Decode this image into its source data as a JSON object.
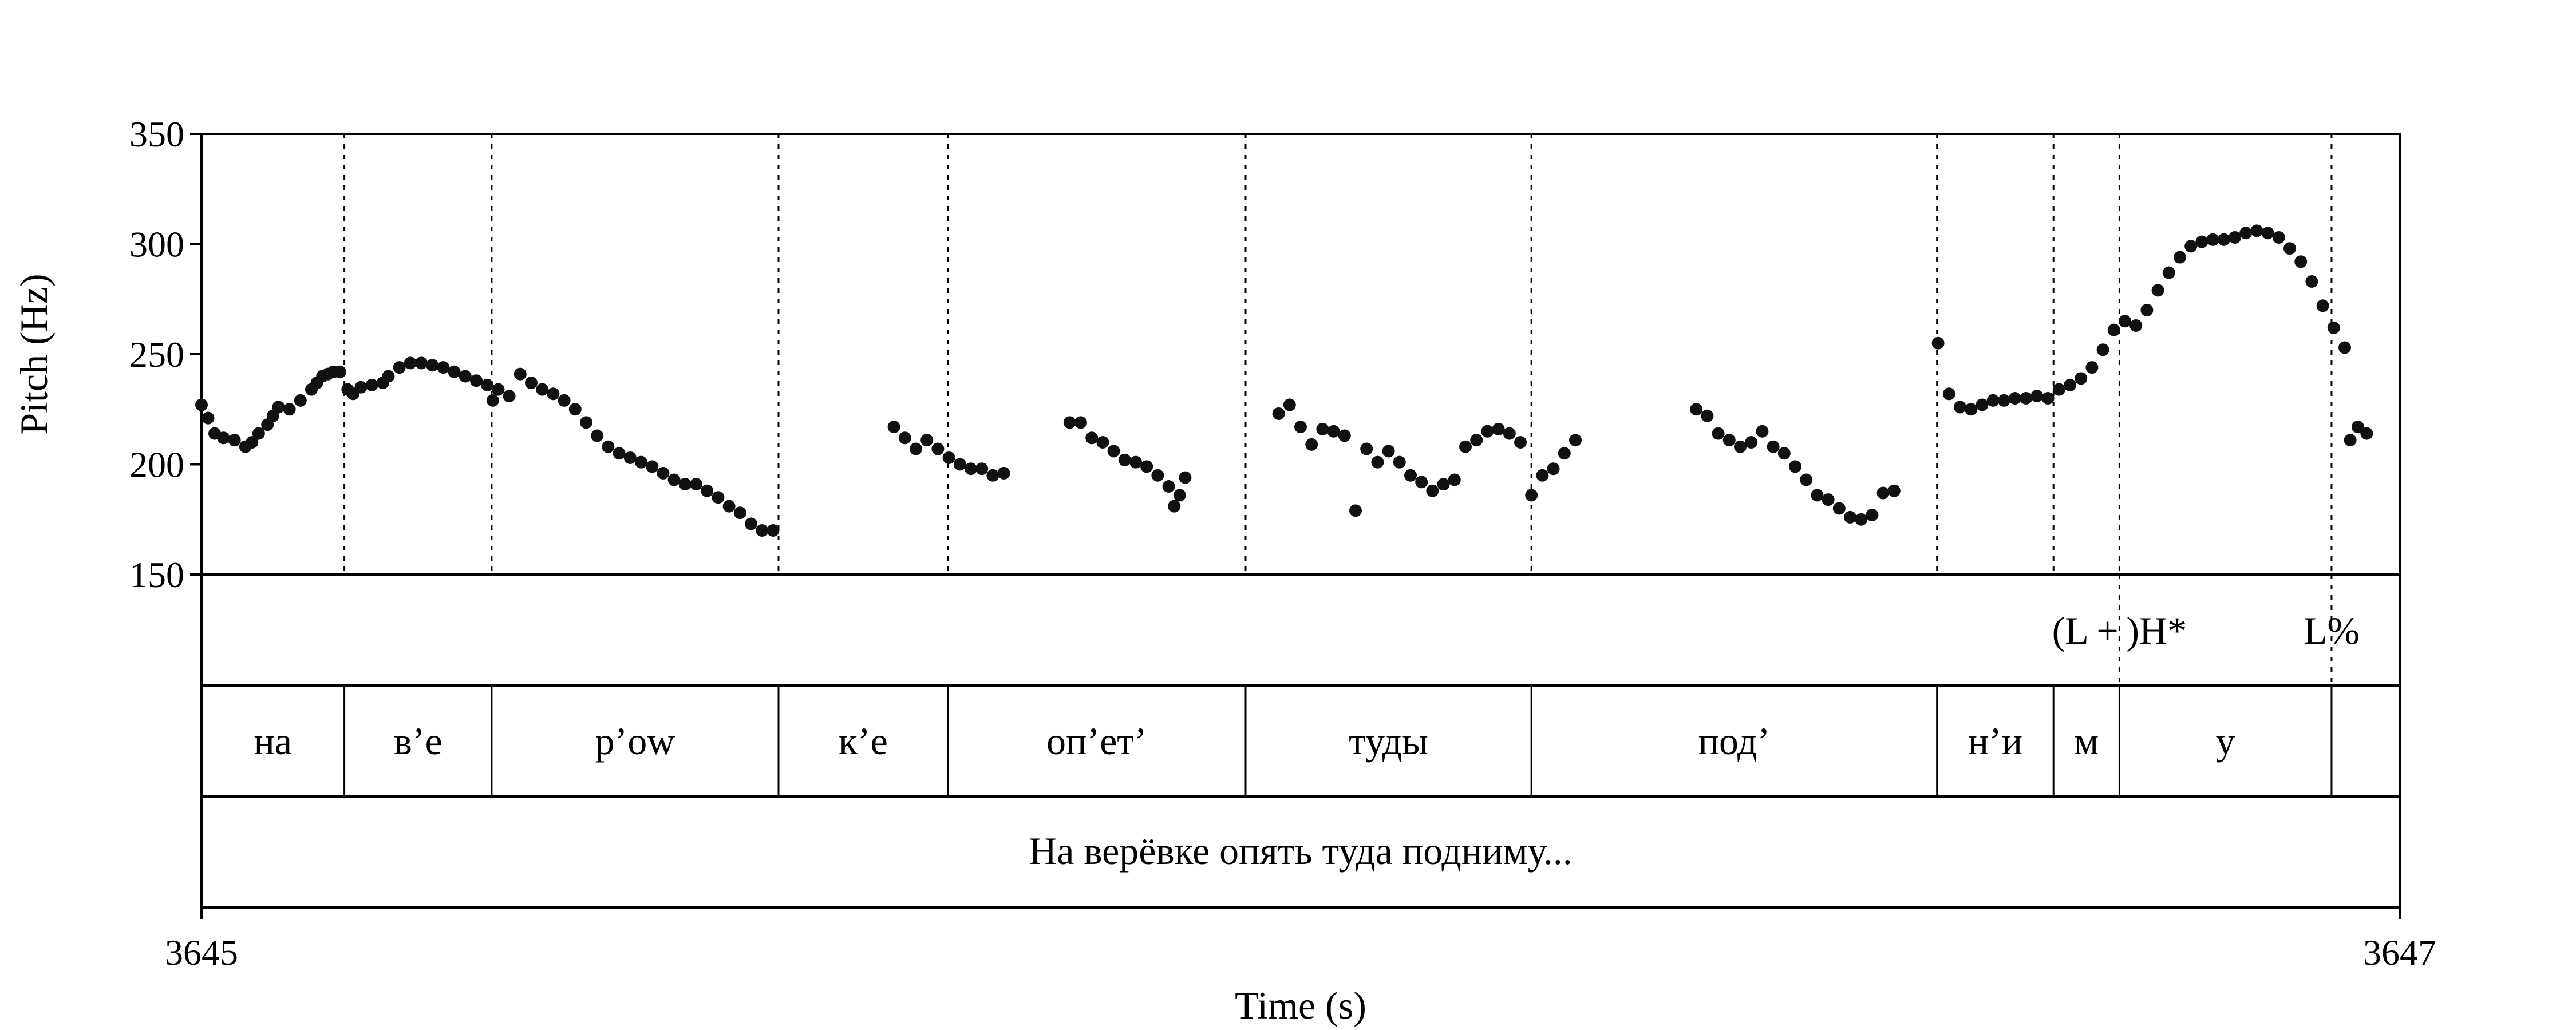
{
  "chart_data": {
    "type": "scatter",
    "title": "",
    "xlabel": "Time (s)",
    "ylabel": "Pitch (Hz)",
    "xlim": [
      3645,
      3647
    ],
    "ylim": [
      150,
      350
    ],
    "x_ticks": [
      "3645",
      "3647"
    ],
    "y_ticks": [
      {
        "value": 150,
        "label": "150"
      },
      {
        "value": 200,
        "label": "200"
      },
      {
        "value": 250,
        "label": "250"
      },
      {
        "value": 300,
        "label": "300"
      },
      {
        "value": 350,
        "label": "350"
      }
    ],
    "grid": false,
    "legend": "none",
    "boundaries": [
      3645.13,
      3645.264,
      3645.525,
      3645.679,
      3645.95,
      3646.21,
      3646.579,
      3646.685,
      3646.745,
      3646.938
    ],
    "tones": [
      {
        "label": "(L + )H*",
        "t": 3646.745
      },
      {
        "label": "L%",
        "t": 3646.938
      }
    ],
    "syllables": [
      {
        "label": "на",
        "start": 3645.0,
        "end": 3645.13
      },
      {
        "label": "в’е",
        "start": 3645.13,
        "end": 3645.264
      },
      {
        "label": "р’ow",
        "start": 3645.264,
        "end": 3645.525
      },
      {
        "label": "к’е",
        "start": 3645.525,
        "end": 3645.679
      },
      {
        "label": "оп’ет’",
        "start": 3645.679,
        "end": 3645.95
      },
      {
        "label": "туды",
        "start": 3645.95,
        "end": 3646.21
      },
      {
        "label": "под’",
        "start": 3646.21,
        "end": 3646.579
      },
      {
        "label": "н’и",
        "start": 3646.579,
        "end": 3646.685
      },
      {
        "label": "м",
        "start": 3646.685,
        "end": 3646.745
      },
      {
        "label": "у",
        "start": 3646.745,
        "end": 3646.938
      }
    ],
    "sentence": "На верёвке опять туда подниму...",
    "segments": [
      {
        "x": [
          3645.0,
          3645.006,
          3645.012,
          3645.02,
          3645.03,
          3645.04,
          3645.046,
          3645.052,
          3645.06,
          3645.065,
          3645.07,
          3645.08,
          3645.09,
          3645.1,
          3645.105,
          3645.11,
          3645.115,
          3645.12,
          3645.126
        ],
        "y": [
          227,
          221,
          214,
          212,
          211,
          208,
          210,
          214,
          218,
          222,
          226,
          225,
          229,
          234,
          237,
          240,
          241,
          242,
          242
        ]
      },
      {
        "x": [
          3645.133,
          3645.138,
          3645.145,
          3645.155,
          3645.165,
          3645.17,
          3645.18,
          3645.19,
          3645.2,
          3645.21,
          3645.22,
          3645.23,
          3645.24,
          3645.25,
          3645.26
        ],
        "y": [
          234,
          232,
          235,
          236,
          237,
          240,
          244,
          246,
          246,
          245,
          244,
          242,
          240,
          238,
          236
        ]
      },
      {
        "x": [
          3645.265,
          3645.27,
          3645.28,
          3645.29,
          3645.3,
          3645.31,
          3645.32,
          3645.33,
          3645.34,
          3645.35,
          3645.36,
          3645.37,
          3645.38,
          3645.39,
          3645.4,
          3645.41,
          3645.42,
          3645.43,
          3645.44,
          3645.45,
          3645.46,
          3645.47,
          3645.48,
          3645.49,
          3645.5,
          3645.51,
          3645.52
        ],
        "y": [
          229,
          234,
          231,
          241,
          237,
          234,
          232,
          229,
          225,
          219,
          213,
          208,
          205,
          203,
          201,
          199,
          196,
          193,
          191,
          191,
          188,
          185,
          181,
          178,
          173,
          170,
          170
        ]
      },
      {
        "x": [
          3645.63,
          3645.64,
          3645.65,
          3645.66,
          3645.67,
          3645.68,
          3645.69,
          3645.7,
          3645.71,
          3645.72,
          3645.73
        ],
        "y": [
          217,
          212,
          207,
          211,
          207,
          203,
          200,
          198,
          198,
          195,
          196
        ]
      },
      {
        "x": [
          3645.79,
          3645.8,
          3645.81,
          3645.82,
          3645.83,
          3645.84,
          3645.85,
          3645.86,
          3645.87,
          3645.88,
          3645.885,
          3645.89,
          3645.895
        ],
        "y": [
          219,
          219,
          212,
          210,
          206,
          202,
          201,
          199,
          195,
          190,
          181,
          186,
          194
        ]
      },
      {
        "x": [
          3645.98,
          3645.99,
          3646.0,
          3646.01,
          3646.02,
          3646.03,
          3646.04,
          3646.05,
          3646.06,
          3646.07,
          3646.08,
          3646.09,
          3646.1,
          3646.11,
          3646.12,
          3646.13,
          3646.14,
          3646.15,
          3646.16,
          3646.17,
          3646.18,
          3646.19,
          3646.2
        ],
        "y": [
          223,
          227,
          217,
          209,
          216,
          215,
          213,
          179,
          207,
          201,
          206,
          201,
          195,
          192,
          188,
          191,
          193,
          208,
          211,
          215,
          216,
          214,
          210
        ]
      },
      {
        "x": [
          3646.21,
          3646.22,
          3646.23,
          3646.24,
          3646.25
        ],
        "y": [
          186,
          195,
          198,
          205,
          211
        ]
      },
      {
        "x": [
          3646.36,
          3646.37,
          3646.38,
          3646.39,
          3646.4,
          3646.41,
          3646.42,
          3646.43,
          3646.44,
          3646.45,
          3646.46,
          3646.47,
          3646.48,
          3646.49,
          3646.5,
          3646.51,
          3646.52,
          3646.53,
          3646.54
        ],
        "y": [
          225,
          222,
          214,
          211,
          208,
          210,
          215,
          208,
          205,
          199,
          193,
          186,
          184,
          180,
          176,
          175,
          177,
          187,
          188
        ]
      },
      {
        "x": [
          3646.58,
          3646.59,
          3646.6,
          3646.61,
          3646.62,
          3646.63,
          3646.64,
          3646.65,
          3646.66,
          3646.67,
          3646.68,
          3646.69,
          3646.7,
          3646.71,
          3646.72,
          3646.73,
          3646.74,
          3646.75,
          3646.76,
          3646.77,
          3646.78,
          3646.79,
          3646.8,
          3646.81,
          3646.82,
          3646.83,
          3646.84,
          3646.85,
          3646.86,
          3646.87,
          3646.88,
          3646.89,
          3646.9,
          3646.91,
          3646.92,
          3646.93,
          3646.94,
          3646.95
        ],
        "y": [
          255,
          232,
          226,
          225,
          227,
          229,
          229,
          230,
          230,
          231,
          230,
          234,
          236,
          239,
          244,
          252,
          261,
          265,
          263,
          270,
          279,
          287,
          294,
          299,
          301,
          302,
          302,
          303,
          305,
          306,
          305,
          303,
          298,
          292,
          283,
          272,
          262,
          253
        ]
      },
      {
        "x": [
          3646.955,
          3646.962,
          3646.97
        ],
        "y": [
          211,
          217,
          214
        ]
      }
    ]
  }
}
